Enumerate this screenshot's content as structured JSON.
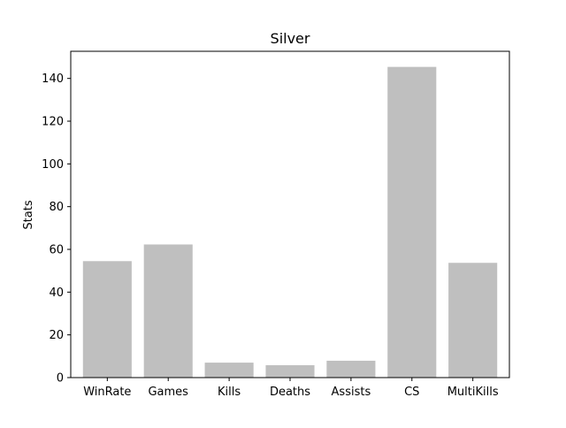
{
  "chart_data": {
    "type": "bar",
    "title": "Silver",
    "xlabel": "",
    "ylabel": "Stats",
    "categories": [
      "WinRate",
      "Games",
      "Kills",
      "Deaths",
      "Assists",
      "CS",
      "MultiKills"
    ],
    "values": [
      54.5,
      62.3,
      7.0,
      5.8,
      7.9,
      145.4,
      53.7
    ],
    "ylim": [
      0,
      152.7
    ],
    "yticks": [
      0,
      20,
      40,
      60,
      80,
      100,
      120,
      140
    ],
    "grid": false,
    "bar_color": "#bfbfbf",
    "axis_color": "#000000"
  }
}
